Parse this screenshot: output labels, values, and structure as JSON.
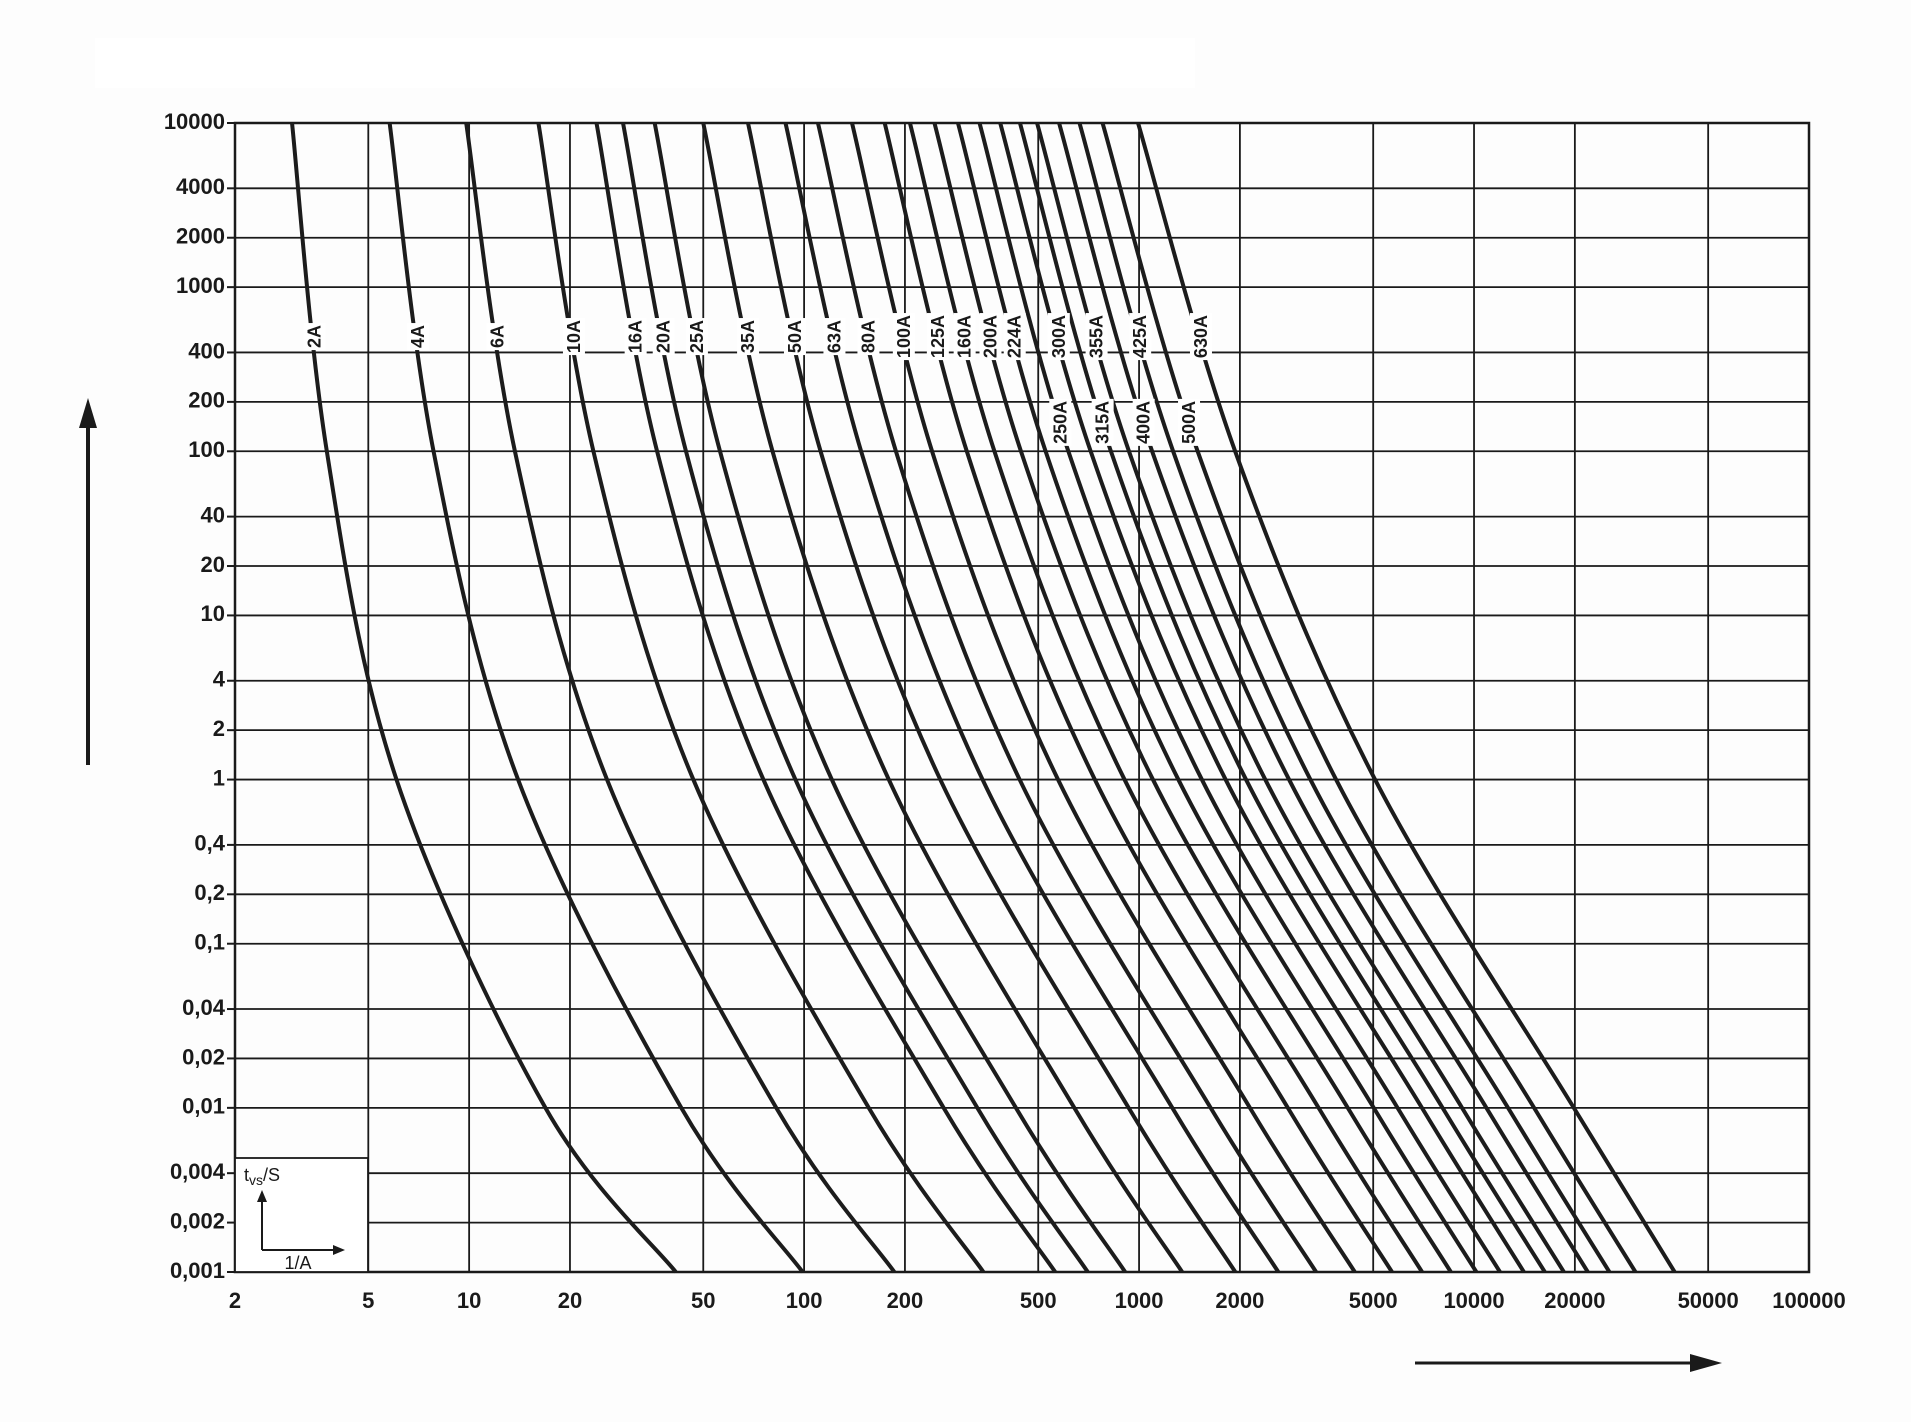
{
  "chart_data": {
    "type": "line",
    "log_x": true,
    "log_y": true,
    "grid": true,
    "color": "#1c1c1c",
    "xlabel": "1/A",
    "ylabel": {
      "symbol": "t",
      "subscript": "vs",
      "unit": "/S"
    },
    "xlim": [
      2,
      100000
    ],
    "ylim": [
      0.001,
      10000
    ],
    "xticks": [
      2,
      5,
      10,
      20,
      50,
      100,
      200,
      500,
      1000,
      2000,
      5000,
      10000,
      20000,
      50000,
      100000
    ],
    "yticks": [
      10000,
      4000,
      2000,
      1000,
      400,
      200,
      100,
      40,
      20,
      10,
      4,
      2,
      1,
      {
        "value": 0.4,
        "label": "0,4"
      },
      {
        "value": 0.2,
        "label": "0,2"
      },
      {
        "value": 0.1,
        "label": "0,1"
      },
      {
        "value": 0.04,
        "label": "0,04"
      },
      {
        "value": 0.02,
        "label": "0,02"
      },
      {
        "value": 0.01,
        "label": "0,01"
      },
      {
        "value": 0.004,
        "label": "0,004"
      },
      {
        "value": 0.002,
        "label": "0,002"
      },
      {
        "value": 0.001,
        "label": "0,001"
      }
    ],
    "series": [
      {
        "name": "2A",
        "x": [
          2.96,
          3.76,
          6.07,
          16.9,
          41.4
        ],
        "values": [
          10000,
          100,
          1,
          0.01,
          0.001
        ]
      },
      {
        "name": "4A",
        "x": [
          5.79,
          7.83,
          14,
          43,
          99
        ],
        "values": [
          10000,
          100,
          1,
          0.01,
          0.001
        ]
      },
      {
        "name": "6A",
        "x": [
          9.8,
          13.7,
          25.8,
          82.6,
          186
        ],
        "values": [
          10000,
          100,
          1,
          0.01,
          0.001
        ]
      },
      {
        "name": "10A",
        "x": [
          16.1,
          23.5,
          46.7,
          156,
          343
        ],
        "values": [
          10000,
          100,
          1,
          0.01,
          0.001
        ]
      },
      {
        "name": "16A",
        "x": [
          24,
          36.4,
          75.6,
          261,
          562
        ],
        "values": [
          10000,
          100,
          1,
          0.01,
          0.001
        ]
      },
      {
        "name": "20A",
        "x": [
          28.8,
          44.4,
          94.2,
          329,
          703
        ],
        "values": [
          10000,
          100,
          1,
          0.01,
          0.001
        ]
      },
      {
        "name": "25A",
        "x": [
          35.8,
          56.1,
          121,
          429,
          909
        ],
        "values": [
          10000,
          100,
          1,
          0.01,
          0.001
        ]
      },
      {
        "name": "35A",
        "x": [
          50,
          80.5,
          179,
          641,
          1345
        ],
        "values": [
          10000,
          100,
          1,
          0.01,
          0.001
        ]
      },
      {
        "name": "50A",
        "x": [
          68,
          112,
          255,
          931,
          1938
        ],
        "values": [
          10000,
          100,
          1,
          0.01,
          0.001
        ]
      },
      {
        "name": "63A",
        "x": [
          88,
          148,
          341,
          1257,
          2605
        ],
        "values": [
          10000,
          100,
          1,
          0.01,
          0.001
        ]
      },
      {
        "name": "80A",
        "x": [
          110,
          188,
          440,
          1636,
          3377
        ],
        "values": [
          10000,
          100,
          1,
          0.01,
          0.001
        ]
      },
      {
        "name": "100A",
        "x": [
          139,
          241,
          573,
          2143,
          4406
        ],
        "values": [
          10000,
          100,
          1,
          0.01,
          0.001
        ]
      },
      {
        "name": "125A",
        "x": [
          174,
          306,
          738,
          2781,
          5690
        ],
        "values": [
          10000,
          100,
          1,
          0.01,
          0.001
        ]
      },
      {
        "name": "160A",
        "x": [
          207,
          370,
          905,
          3436,
          6997
        ],
        "values": [
          10000,
          100,
          1,
          0.01,
          0.001
        ]
      },
      {
        "name": "200A",
        "x": [
          245,
          444,
          1100,
          4199,
          8526
        ],
        "values": [
          10000,
          100,
          1,
          0.01,
          0.001
        ]
      },
      {
        "name": "224A",
        "x": [
          288,
          526,
          1310,
          5020,
          10166
        ],
        "values": [
          10000,
          100,
          1,
          0.01,
          0.001
        ]
      },
      {
        "name": "250A",
        "x": [
          334,
          615,
          1540,
          5912,
          11957
        ],
        "values": [
          10000,
          100,
          1,
          0.01,
          0.001
        ]
      },
      {
        "name": "300A",
        "x": [
          385,
          717,
          1813,
          6992,
          14091
        ],
        "values": [
          10000,
          100,
          1,
          0.01,
          0.001
        ]
      },
      {
        "name": "315A",
        "x": [
          441,
          824,
          2086,
          8057,
          16273
        ],
        "values": [
          10000,
          100,
          1,
          0.01,
          0.001
        ]
      },
      {
        "name": "355A",
        "x": [
          496,
          933,
          2381,
          9211,
          18550
        ],
        "values": [
          10000,
          100,
          1,
          0.01,
          0.001
        ]
      },
      {
        "name": "400A",
        "x": [
          577,
          1094,
          2804,
          10888,
          21868
        ],
        "values": [
          10000,
          100,
          1,
          0.01,
          0.001
        ]
      },
      {
        "name": "425A",
        "x": [
          664,
          1264,
          3247,
          12636,
          25365
        ],
        "values": [
          10000,
          100,
          1,
          0.01,
          0.001
        ]
      },
      {
        "name": "500A",
        "x": [
          778,
          1496,
          3874,
          15117,
          30342
        ],
        "values": [
          10000,
          100,
          1,
          0.01,
          0.001
        ]
      },
      {
        "name": "630A",
        "x": [
          993,
          1936,
          5064,
          19860,
          39720
        ],
        "values": [
          10000,
          100,
          1,
          0.01,
          0.001
        ]
      }
    ]
  }
}
